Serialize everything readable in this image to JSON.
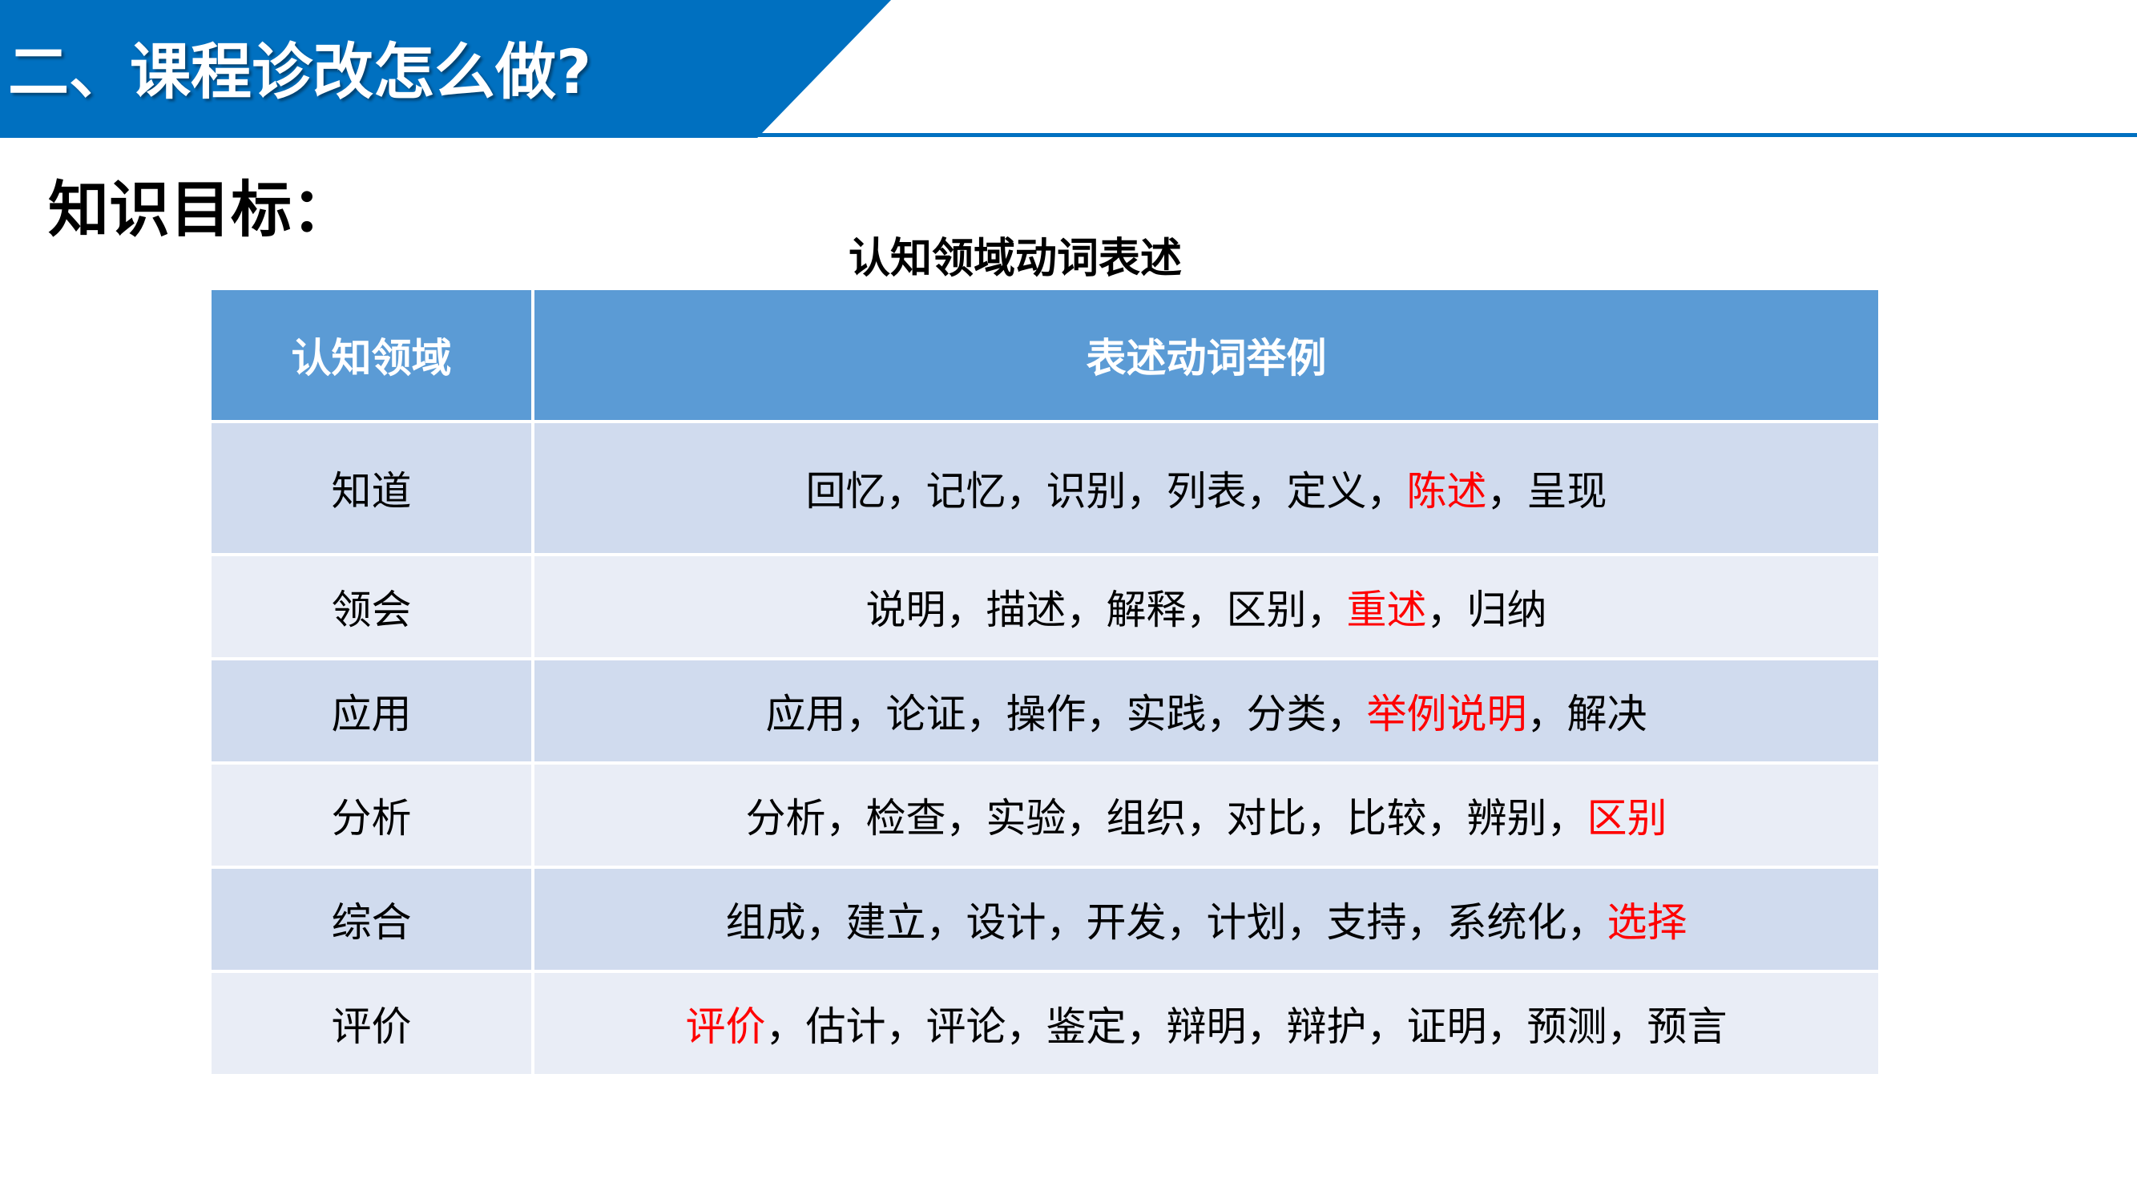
{
  "header": {
    "title": "二、课程诊改怎么做?"
  },
  "subtitle": "知识目标：",
  "table": {
    "title": "认知领域动词表述",
    "columns": [
      "认知领域",
      "表述动词举例"
    ],
    "highlight_color": "#ff0000",
    "rows": [
      {
        "domain": "知道",
        "verbs": [
          {
            "t": "回忆，记忆，识别，列表，定义，"
          },
          {
            "t": "陈述",
            "red": true
          },
          {
            "t": "，呈现"
          }
        ]
      },
      {
        "domain": "领会",
        "verbs": [
          {
            "t": "说明，描述，解释，区别，"
          },
          {
            "t": "重述",
            "red": true
          },
          {
            "t": "，归纳"
          }
        ]
      },
      {
        "domain": "应用",
        "verbs": [
          {
            "t": "应用，论证，操作，实践，分类，"
          },
          {
            "t": "举例说明",
            "red": true
          },
          {
            "t": "，解决"
          }
        ]
      },
      {
        "domain": "分析",
        "verbs": [
          {
            "t": "分析，检查，实验，组织，对比，比较，辨别，"
          },
          {
            "t": "区别",
            "red": true
          }
        ]
      },
      {
        "domain": "综合",
        "verbs": [
          {
            "t": "组成，建立，设计，开发，计划，支持，系统化，"
          },
          {
            "t": "选择",
            "red": true
          }
        ]
      },
      {
        "domain": "评价",
        "verbs": [
          {
            "t": "评价",
            "red": true
          },
          {
            "t": "，估计，评论，鉴定，辩明，辩护，证明，预测，预言"
          }
        ]
      }
    ]
  }
}
